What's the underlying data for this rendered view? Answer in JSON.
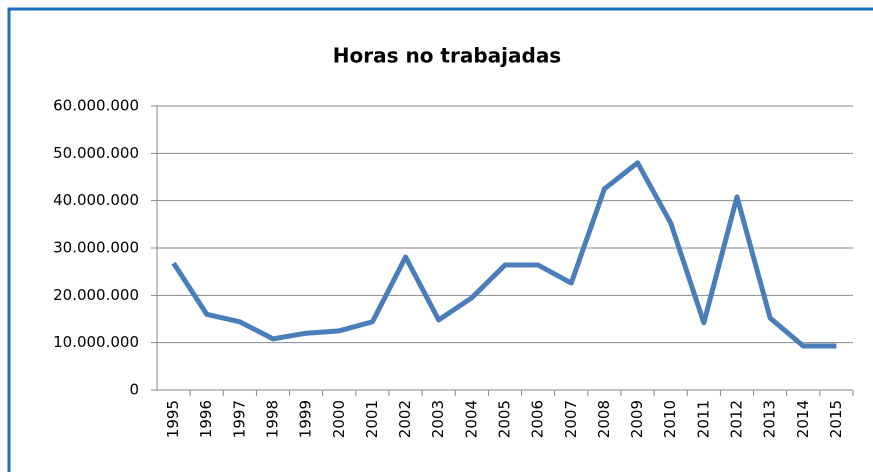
{
  "chart_data": {
    "type": "line",
    "title": "Horas no trabajadas",
    "categories": [
      "1995",
      "1996",
      "1997",
      "1998",
      "1999",
      "2000",
      "2001",
      "2002",
      "2003",
      "2004",
      "2005",
      "2006",
      "2007",
      "2008",
      "2009",
      "2010",
      "2011",
      "2012",
      "2013",
      "2014",
      "2015"
    ],
    "series": [
      {
        "color": "#4a7ebb",
        "values": [
          26800000,
          16000000,
          14400000,
          10800000,
          12000000,
          12500000,
          14400000,
          28100000,
          14800000,
          19500000,
          26400000,
          26400000,
          22600000,
          42500000,
          48000000,
          35300000,
          14200000,
          40800000,
          15200000,
          9300000,
          9300000
        ]
      }
    ],
    "ylim": [
      0,
      60000000
    ],
    "yticks": [
      0,
      {
        "value": 10000000,
        "label": "10.000.000"
      },
      {
        "value": 20000000,
        "label": "20.000.000"
      },
      {
        "value": 30000000,
        "label": "30.000.000"
      },
      {
        "value": 40000000,
        "label": "40.000.000"
      },
      {
        "value": 50000000,
        "label": "50.000.000"
      },
      {
        "value": 60000000,
        "label": "60.000.000"
      }
    ],
    "grid": true
  }
}
